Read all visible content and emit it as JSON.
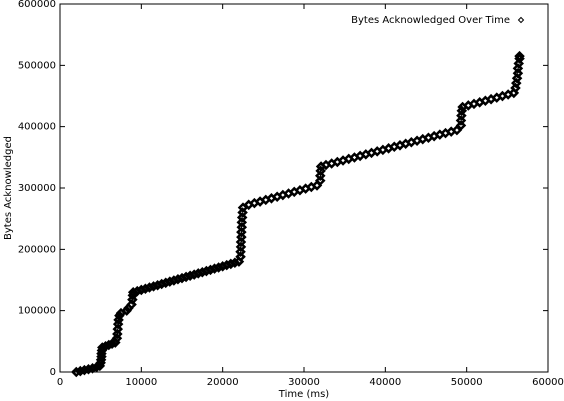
{
  "chart_data": {
    "type": "scatter",
    "xlabel": "Time (ms)",
    "ylabel": "Bytes Acknowledged",
    "xlim": [
      0,
      60000
    ],
    "xticks": [
      0,
      10000,
      20000,
      30000,
      40000,
      50000,
      60000
    ],
    "ylim": [
      0,
      600000
    ],
    "yticks": [
      0,
      100000,
      200000,
      300000,
      400000,
      500000,
      600000
    ],
    "legend": "top-right",
    "series": [
      {
        "name": "Bytes Acknowledged Over Time",
        "color": "#000000",
        "x": [
          2000,
          2500,
          3000,
          3500,
          4000,
          4500,
          4900,
          5000,
          5050,
          5100,
          5100,
          5150,
          5200,
          5600,
          6000,
          6400,
          6800,
          7000,
          7050,
          7100,
          7150,
          7200,
          7300,
          7500,
          8200,
          8400,
          8800,
          8900,
          8950,
          9000,
          9500,
          10000,
          10500,
          11000,
          11500,
          12000,
          12500,
          13000,
          13500,
          14000,
          14500,
          15000,
          15500,
          16000,
          16500,
          17000,
          17500,
          18000,
          18500,
          19000,
          19500,
          20000,
          20500,
          21000,
          21500,
          22000,
          22200,
          22200,
          22250,
          22250,
          22300,
          22300,
          22350,
          22350,
          22400,
          22450,
          22500,
          23200,
          23900,
          24600,
          25300,
          26000,
          26700,
          27400,
          28100,
          28800,
          29500,
          30200,
          30900,
          31600,
          32000,
          32000,
          32050,
          32100,
          32700,
          33400,
          34100,
          34800,
          35500,
          36200,
          36900,
          37600,
          38300,
          39000,
          39700,
          40400,
          41100,
          41800,
          42500,
          43200,
          43900,
          44600,
          45300,
          46000,
          46700,
          47400,
          48100,
          48800,
          49300,
          49300,
          49350,
          49400,
          49500,
          50200,
          50900,
          51600,
          52300,
          53000,
          53700,
          54400,
          55100,
          55800,
          56000,
          56100,
          56200,
          56300,
          56300,
          56400,
          56500,
          56500
        ],
        "values": [
          0,
          1500,
          3000,
          4500,
          6000,
          8000,
          10000,
          15000,
          20000,
          25000,
          30000,
          35000,
          40000,
          42000,
          44000,
          46000,
          48000,
          55000,
          62000,
          70000,
          78000,
          85000,
          92000,
          96000,
          100000,
          104000,
          110000,
          118000,
          125000,
          130000,
          131900,
          133800,
          135800,
          137700,
          139600,
          141500,
          143500,
          145400,
          147300,
          149200,
          151200,
          153100,
          155000,
          156900,
          158800,
          160800,
          162700,
          164600,
          166500,
          168500,
          170400,
          172300,
          174200,
          176200,
          178100,
          180000,
          188000,
          196000,
          204000,
          212000,
          220000,
          228000,
          236000,
          244000,
          252000,
          260000,
          268000,
          272600,
          275300,
          277900,
          280600,
          283200,
          285800,
          288500,
          291100,
          293700,
          296400,
          299000,
          301600,
          304200,
          312000,
          320000,
          328000,
          335000,
          337500,
          339900,
          342400,
          344900,
          347400,
          349800,
          352300,
          354800,
          357300,
          359700,
          362200,
          364700,
          367200,
          369600,
          372100,
          374600,
          377100,
          379600,
          382000,
          384500,
          387000,
          389500,
          391900,
          394400,
          402000,
          410000,
          418000,
          426000,
          432000,
          434600,
          437100,
          439700,
          442200,
          444800,
          447300,
          449900,
          452400,
          455000,
          463000,
          471000,
          479000,
          487000,
          495000,
          503000,
          511000,
          515000
        ]
      }
    ]
  }
}
